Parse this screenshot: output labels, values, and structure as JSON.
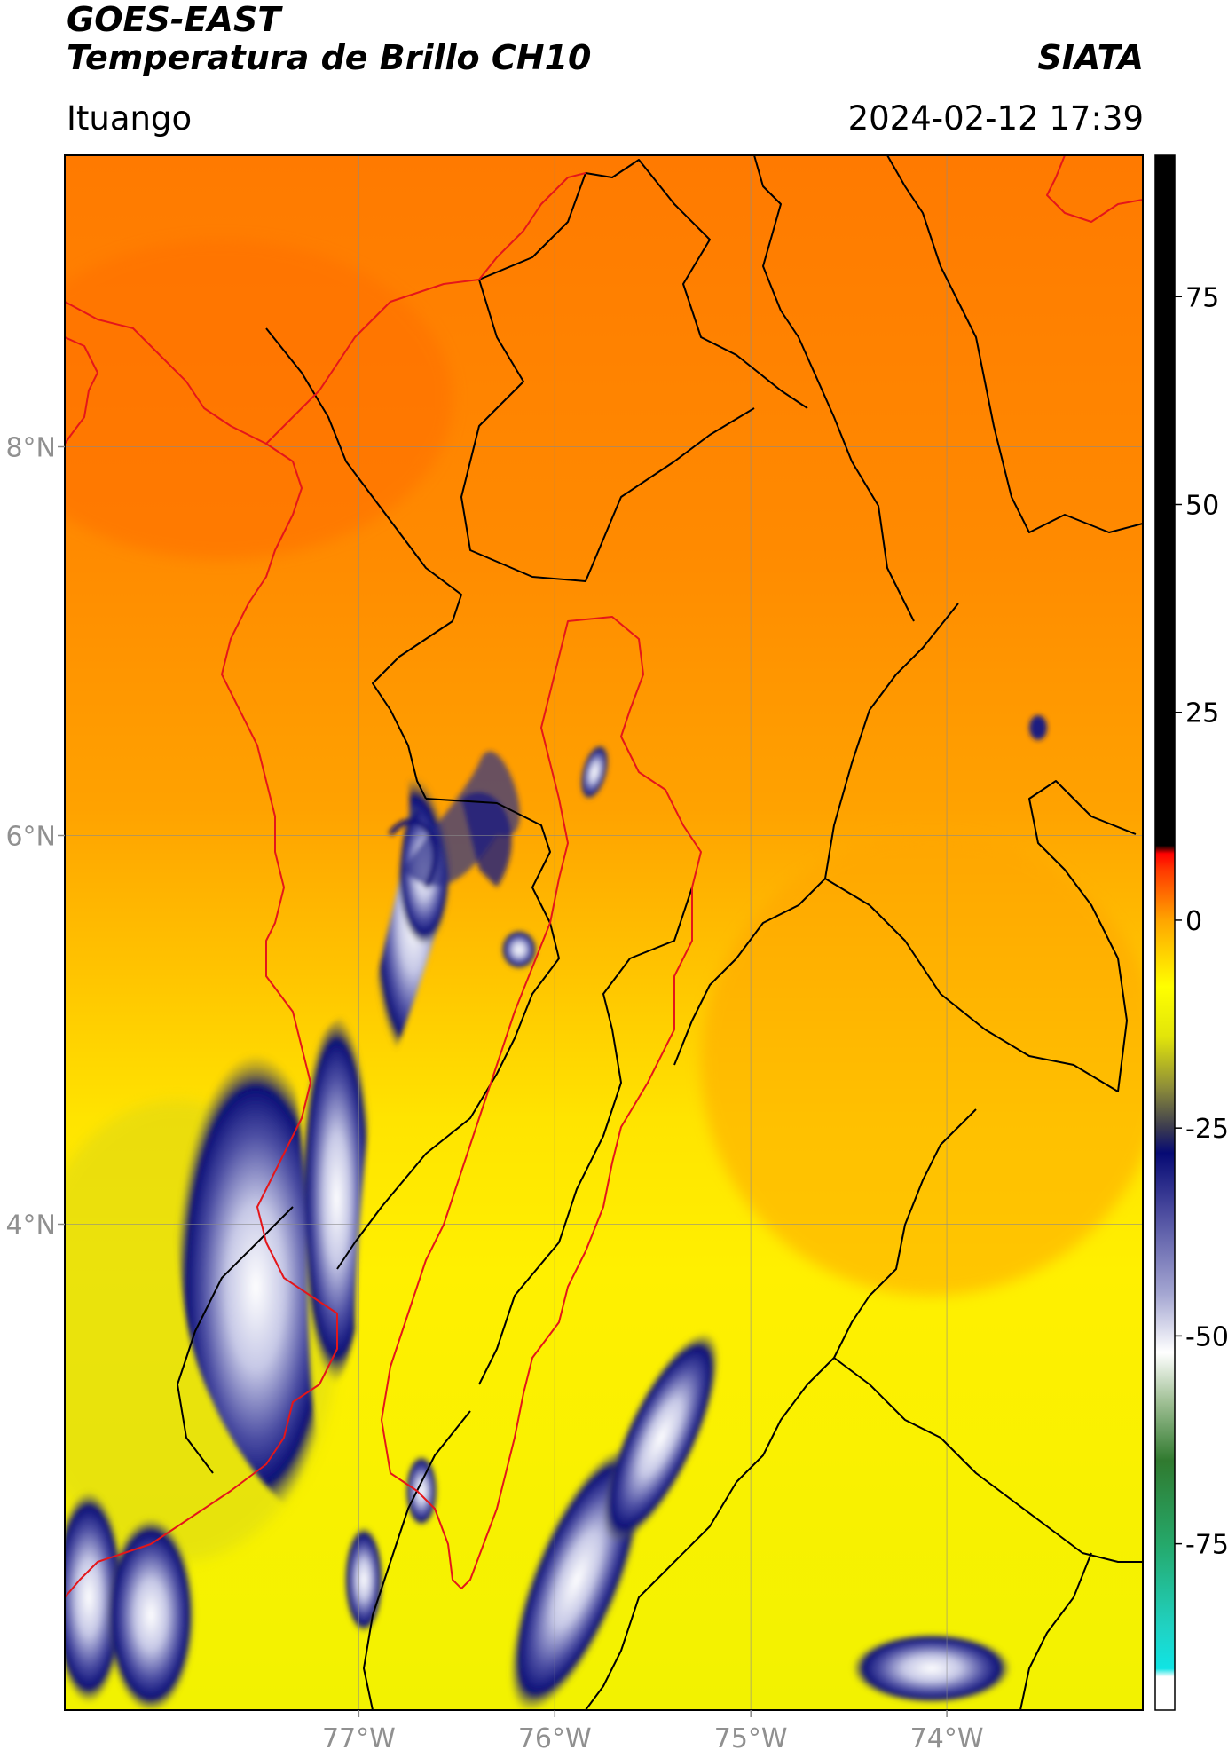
{
  "header": {
    "satellite": "GOES-EAST",
    "product": "Temperatura de Brillo CH10",
    "agency": "SIATA",
    "region": "Ituango",
    "timestamp": "2024-02-12 17:39"
  },
  "map": {
    "lon_range": [
      -78.5,
      -73.0
    ],
    "lat_range": [
      1.5,
      9.5
    ],
    "lat_ticks": [
      {
        "value": 8,
        "label": "8°N"
      },
      {
        "value": 6,
        "label": "6°N"
      },
      {
        "value": 4,
        "label": "4°N"
      }
    ],
    "lon_ticks": [
      {
        "value": -77,
        "label": "77°W"
      },
      {
        "value": -76,
        "label": "76°W"
      },
      {
        "value": -75,
        "label": "75°W"
      },
      {
        "value": -74,
        "label": "74°W"
      }
    ],
    "grid": true,
    "colors": {
      "coast_border": "#e4161a",
      "admin_border": "#000000",
      "basin_outline": "#e4161a"
    }
  },
  "colorbar": {
    "range": [
      -95,
      92
    ],
    "ticks": [
      {
        "value": 75,
        "label": "75"
      },
      {
        "value": 50,
        "label": "50"
      },
      {
        "value": 25,
        "label": "25"
      },
      {
        "value": 0,
        "label": "0"
      },
      {
        "value": -25,
        "label": "-25"
      },
      {
        "value": -50,
        "label": "-50"
      },
      {
        "value": -75,
        "label": "-75"
      }
    ],
    "stops": [
      {
        "value": -95,
        "color": "#ffffff"
      },
      {
        "value": -91,
        "color": "#ffffff"
      },
      {
        "value": -90,
        "color": "#10e4e4"
      },
      {
        "value": -85,
        "color": "#20d2c2"
      },
      {
        "value": -75,
        "color": "#25a86a"
      },
      {
        "value": -65,
        "color": "#307a2f"
      },
      {
        "value": -58,
        "color": "#9fbf94"
      },
      {
        "value": -52,
        "color": "#ffffff"
      },
      {
        "value": -45,
        "color": "#a5a7d2"
      },
      {
        "value": -35,
        "color": "#4a4a9e"
      },
      {
        "value": -28,
        "color": "#060a74"
      },
      {
        "value": -25,
        "color": "#3a3a50"
      },
      {
        "value": -20,
        "color": "#8f8f38"
      },
      {
        "value": -14,
        "color": "#e2e50a"
      },
      {
        "value": -8,
        "color": "#ffff00"
      },
      {
        "value": 0,
        "color": "#ffa500"
      },
      {
        "value": 6,
        "color": "#ff3a00"
      },
      {
        "value": 8,
        "color": "#ff0000"
      },
      {
        "value": 9,
        "color": "#000000"
      },
      {
        "value": 92,
        "color": "#000000"
      }
    ]
  }
}
